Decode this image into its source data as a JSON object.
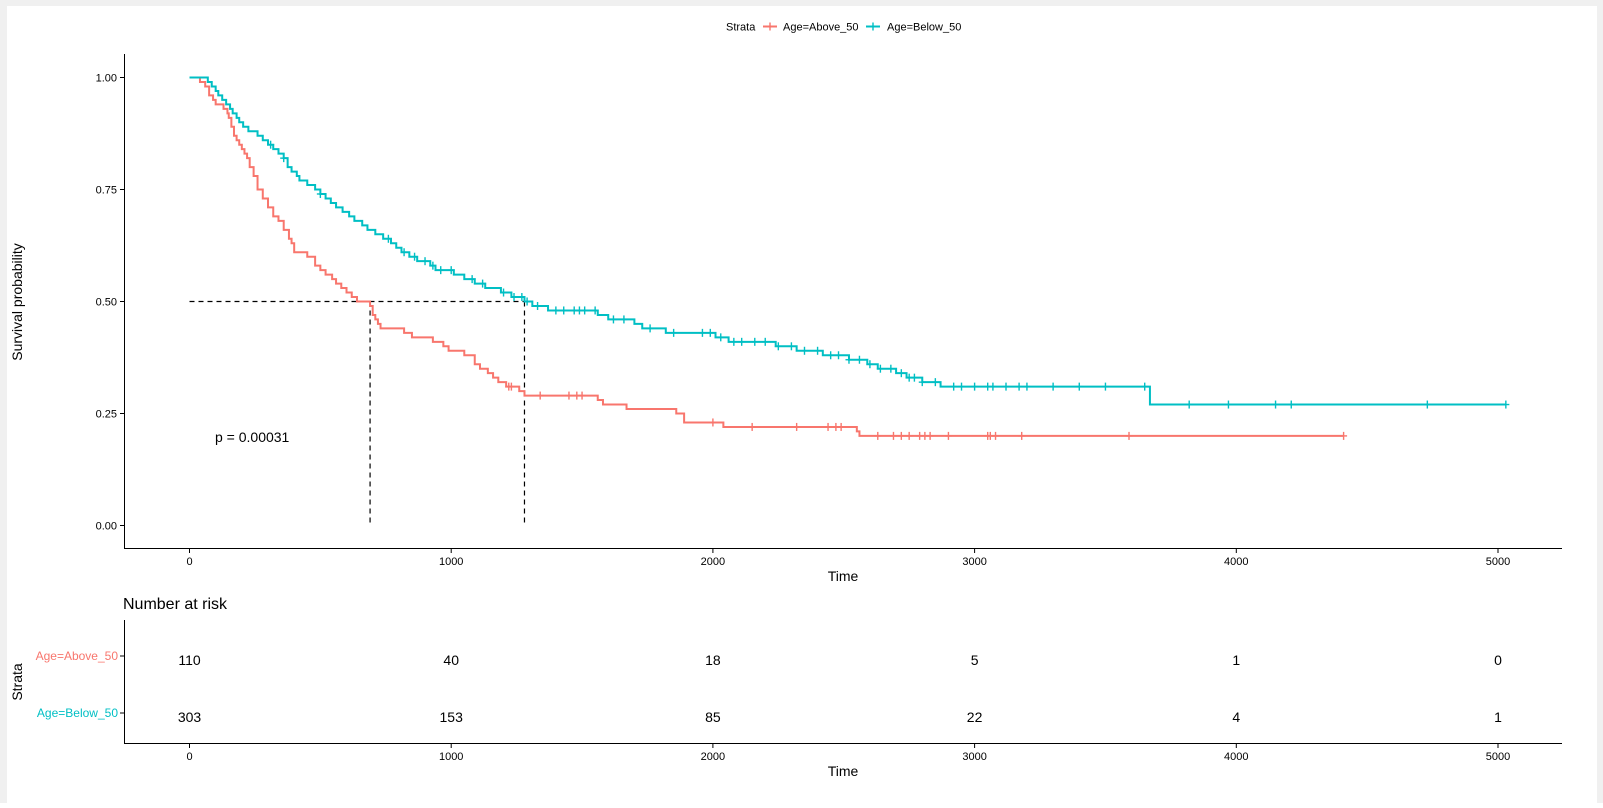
{
  "chart_data": {
    "type": "line",
    "subtype": "kaplan-meier",
    "legend": {
      "title": "Strata",
      "placement": "top",
      "entries": [
        "Age=Above_50",
        "Age=Below_50"
      ]
    },
    "xlabel": "Time",
    "ylabel": "Survival probability",
    "xlim": [
      -250,
      5250
    ],
    "ylim": [
      -0.05,
      1.05
    ],
    "x_ticks": [
      0,
      1000,
      2000,
      3000,
      4000,
      5000
    ],
    "y_ticks": [
      0,
      0.25,
      0.5,
      0.75,
      1.0
    ],
    "y_tick_labels": [
      "0.00",
      "0.25",
      "0.50",
      "0.75",
      "1.00"
    ],
    "grid": false,
    "p_value_text": "p = 0.00031",
    "median_survival": {
      "y": 0.5,
      "x": [
        690,
        1280
      ]
    },
    "series": [
      {
        "name": "Age=Above_50",
        "color": "#F8766D",
        "steps": [
          [
            0,
            1.0
          ],
          [
            40,
            0.99
          ],
          [
            60,
            0.98
          ],
          [
            75,
            0.96
          ],
          [
            90,
            0.95
          ],
          [
            100,
            0.94
          ],
          [
            130,
            0.93
          ],
          [
            145,
            0.92
          ],
          [
            150,
            0.91
          ],
          [
            160,
            0.89
          ],
          [
            170,
            0.87
          ],
          [
            180,
            0.86
          ],
          [
            190,
            0.85
          ],
          [
            200,
            0.84
          ],
          [
            210,
            0.83
          ],
          [
            220,
            0.82
          ],
          [
            230,
            0.8
          ],
          [
            245,
            0.78
          ],
          [
            260,
            0.75
          ],
          [
            280,
            0.73
          ],
          [
            300,
            0.71
          ],
          [
            320,
            0.69
          ],
          [
            340,
            0.68
          ],
          [
            360,
            0.66
          ],
          [
            380,
            0.64
          ],
          [
            390,
            0.63
          ],
          [
            400,
            0.61
          ],
          [
            450,
            0.6
          ],
          [
            480,
            0.58
          ],
          [
            500,
            0.57
          ],
          [
            520,
            0.56
          ],
          [
            545,
            0.55
          ],
          [
            560,
            0.54
          ],
          [
            580,
            0.53
          ],
          [
            600,
            0.52
          ],
          [
            620,
            0.51
          ],
          [
            640,
            0.5
          ],
          [
            690,
            0.49
          ],
          [
            700,
            0.47
          ],
          [
            710,
            0.46
          ],
          [
            720,
            0.45
          ],
          [
            730,
            0.44
          ],
          [
            770,
            0.44
          ],
          [
            820,
            0.43
          ],
          [
            850,
            0.42
          ],
          [
            930,
            0.41
          ],
          [
            970,
            0.4
          ],
          [
            990,
            0.39
          ],
          [
            1050,
            0.38
          ],
          [
            1090,
            0.36
          ],
          [
            1110,
            0.35
          ],
          [
            1140,
            0.34
          ],
          [
            1160,
            0.33
          ],
          [
            1180,
            0.32
          ],
          [
            1210,
            0.31
          ],
          [
            1260,
            0.3
          ],
          [
            1280,
            0.29
          ],
          [
            1560,
            0.28
          ],
          [
            1580,
            0.27
          ],
          [
            1670,
            0.26
          ],
          [
            1860,
            0.25
          ],
          [
            1890,
            0.23
          ],
          [
            2040,
            0.22
          ],
          [
            2550,
            0.21
          ],
          [
            2560,
            0.2
          ],
          [
            4410,
            0.2
          ]
        ],
        "censor_times": [
          1220,
          1230,
          1340,
          1450,
          1480,
          1500,
          2000,
          2150,
          2320,
          2440,
          2470,
          2490,
          2630,
          2690,
          2720,
          2750,
          2790,
          2810,
          2830,
          2900,
          3050,
          3060,
          3080,
          3180,
          3590,
          4410
        ]
      },
      {
        "name": "Age=Below_50",
        "color": "#00BFC4",
        "steps": [
          [
            0,
            1.0
          ],
          [
            70,
            0.99
          ],
          [
            85,
            0.98
          ],
          [
            100,
            0.97
          ],
          [
            110,
            0.96
          ],
          [
            125,
            0.95
          ],
          [
            140,
            0.94
          ],
          [
            155,
            0.93
          ],
          [
            165,
            0.92
          ],
          [
            180,
            0.91
          ],
          [
            190,
            0.9
          ],
          [
            205,
            0.89
          ],
          [
            225,
            0.88
          ],
          [
            260,
            0.87
          ],
          [
            280,
            0.86
          ],
          [
            300,
            0.85
          ],
          [
            320,
            0.84
          ],
          [
            340,
            0.83
          ],
          [
            360,
            0.82
          ],
          [
            375,
            0.8
          ],
          [
            390,
            0.79
          ],
          [
            410,
            0.78
          ],
          [
            420,
            0.77
          ],
          [
            450,
            0.76
          ],
          [
            480,
            0.75
          ],
          [
            500,
            0.74
          ],
          [
            520,
            0.73
          ],
          [
            540,
            0.72
          ],
          [
            560,
            0.71
          ],
          [
            585,
            0.7
          ],
          [
            610,
            0.69
          ],
          [
            630,
            0.68
          ],
          [
            660,
            0.67
          ],
          [
            680,
            0.66
          ],
          [
            710,
            0.65
          ],
          [
            740,
            0.64
          ],
          [
            770,
            0.63
          ],
          [
            790,
            0.62
          ],
          [
            810,
            0.61
          ],
          [
            840,
            0.6
          ],
          [
            870,
            0.59
          ],
          [
            920,
            0.58
          ],
          [
            940,
            0.57
          ],
          [
            1010,
            0.56
          ],
          [
            1050,
            0.55
          ],
          [
            1090,
            0.54
          ],
          [
            1130,
            0.53
          ],
          [
            1190,
            0.52
          ],
          [
            1230,
            0.51
          ],
          [
            1280,
            0.5
          ],
          [
            1310,
            0.49
          ],
          [
            1370,
            0.48
          ],
          [
            1450,
            0.48
          ],
          [
            1560,
            0.47
          ],
          [
            1600,
            0.46
          ],
          [
            1700,
            0.45
          ],
          [
            1730,
            0.44
          ],
          [
            1820,
            0.43
          ],
          [
            1950,
            0.43
          ],
          [
            2010,
            0.42
          ],
          [
            2060,
            0.41
          ],
          [
            2240,
            0.4
          ],
          [
            2320,
            0.39
          ],
          [
            2420,
            0.38
          ],
          [
            2520,
            0.37
          ],
          [
            2590,
            0.36
          ],
          [
            2630,
            0.35
          ],
          [
            2700,
            0.34
          ],
          [
            2740,
            0.33
          ],
          [
            2800,
            0.32
          ],
          [
            2870,
            0.31
          ],
          [
            3670,
            0.27
          ],
          [
            5030,
            0.27
          ]
        ],
        "censor_times": [
          310,
          360,
          500,
          760,
          820,
          860,
          900,
          930,
          960,
          1000,
          1080,
          1120,
          1200,
          1240,
          1270,
          1290,
          1330,
          1400,
          1430,
          1470,
          1490,
          1510,
          1550,
          1620,
          1660,
          1760,
          1850,
          1960,
          1990,
          2030,
          2080,
          2110,
          2160,
          2200,
          2250,
          2300,
          2350,
          2400,
          2450,
          2480,
          2520,
          2560,
          2600,
          2640,
          2680,
          2720,
          2750,
          2770,
          2800,
          2850,
          2920,
          2950,
          3000,
          3050,
          3070,
          3120,
          3170,
          3200,
          3300,
          3400,
          3500,
          3650,
          3820,
          3970,
          4150,
          4210,
          4730,
          5030
        ]
      }
    ],
    "risk_table": {
      "title": "Number at risk",
      "ylabel": "Strata",
      "xlabel": "Time",
      "times": [
        0,
        1000,
        2000,
        3000,
        4000,
        5000
      ],
      "rows": [
        {
          "name": "Age=Above_50",
          "values": [
            110,
            40,
            18,
            5,
            1,
            0
          ]
        },
        {
          "name": "Age=Below_50",
          "values": [
            303,
            153,
            85,
            22,
            4,
            1
          ]
        }
      ]
    }
  }
}
